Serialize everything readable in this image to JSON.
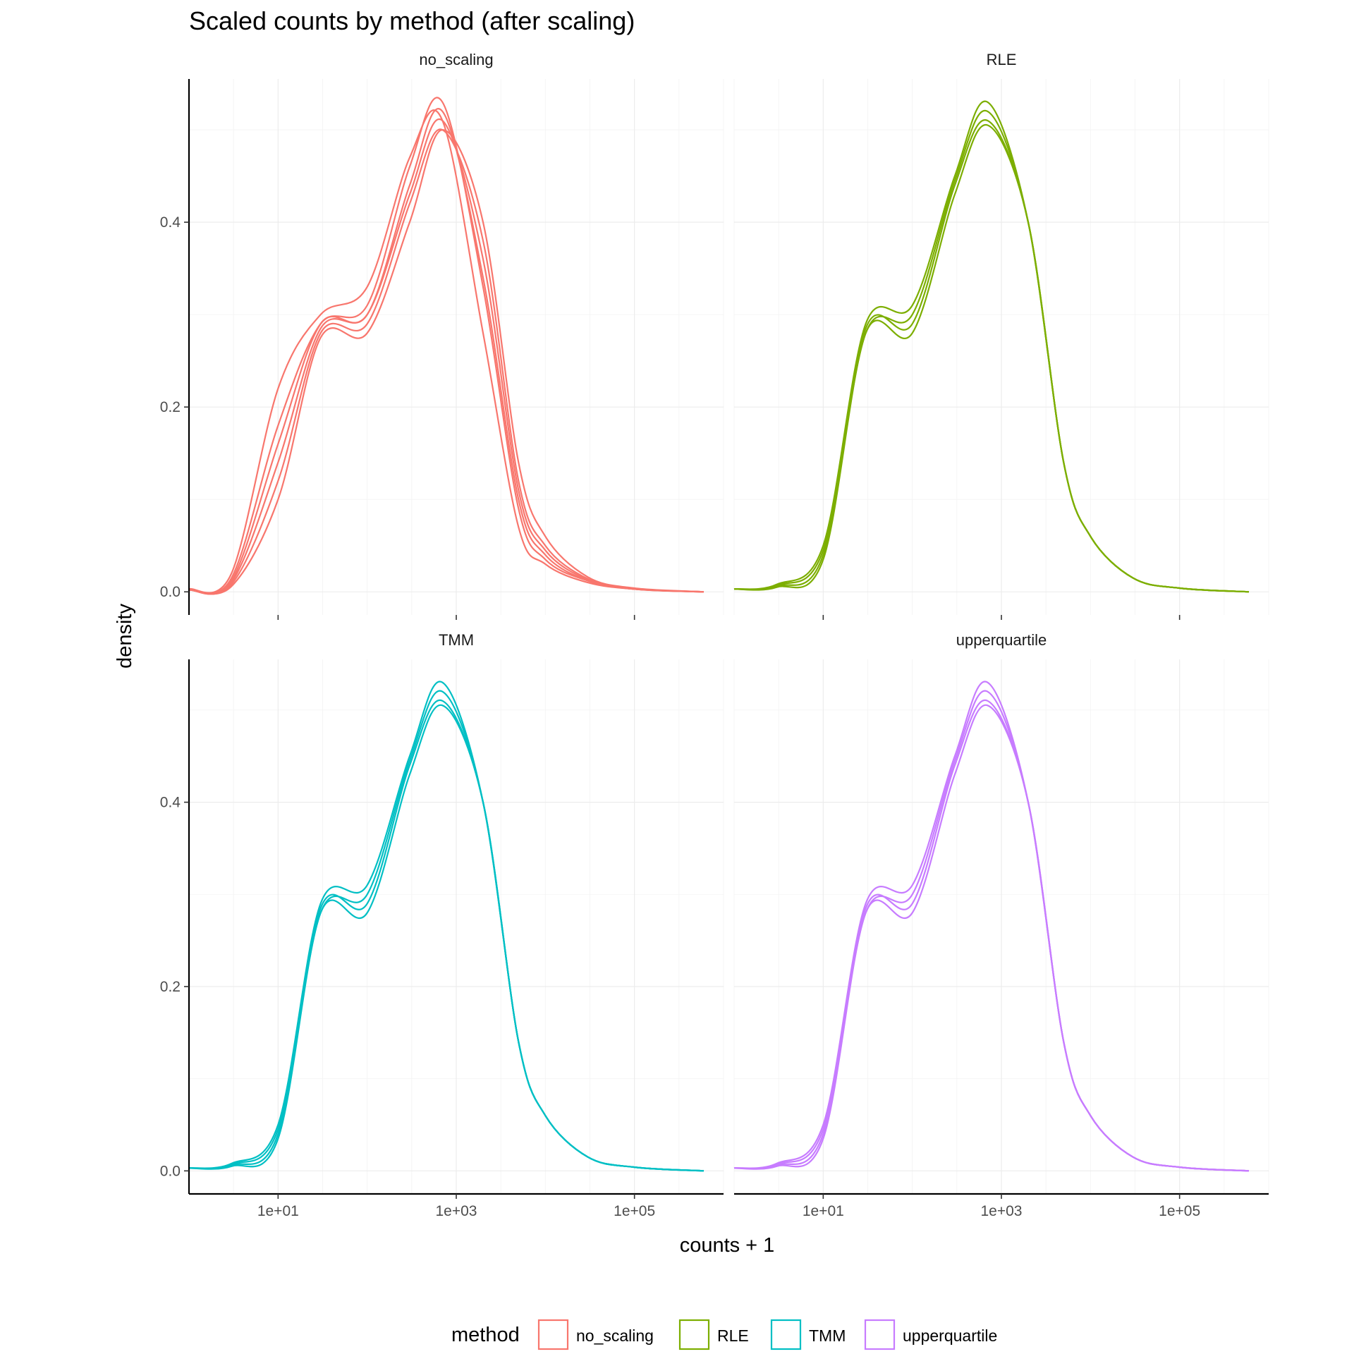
{
  "title": "Scaled counts by method (after scaling)",
  "xlabel": "counts + 1",
  "ylabel": "density",
  "legend": {
    "title": "method",
    "items": [
      {
        "label": "no_scaling",
        "color": "#F8766D"
      },
      {
        "label": "RLE",
        "color": "#7CAE00"
      },
      {
        "label": "TMM",
        "color": "#00BFC4"
      },
      {
        "label": "upperquartile",
        "color": "#C77CFF"
      }
    ]
  },
  "chart_data": {
    "type": "line",
    "subtype": "density",
    "title": "Scaled counts by method (after scaling)",
    "xlabel": "counts + 1",
    "ylabel": "density",
    "x_scale": "log10",
    "xlim": [
      1,
      1000000
    ],
    "ylim": [
      -0.025,
      0.555
    ],
    "x_ticks": [
      "1e+01",
      "1e+03",
      "1e+05"
    ],
    "y_ticks": [
      "0.0",
      "0.2",
      "0.4"
    ],
    "grid": true,
    "legend_position": "bottom",
    "facets": [
      {
        "name": "no_scaling",
        "color": "#F8766D",
        "series": [
          {
            "x": [
              1,
              3,
              10,
              30,
              100,
              300,
              700,
              2000,
              5000,
              10000,
              30000,
              100000,
              600000
            ],
            "y": [
              0.003,
              0.02,
              0.22,
              0.3,
              0.33,
              0.47,
              0.51,
              0.28,
              0.07,
              0.03,
              0.01,
              0.003,
              0.0
            ]
          },
          {
            "x": [
              1,
              3,
              10,
              30,
              100,
              300,
              700,
              2000,
              5000,
              10000,
              30000,
              100000,
              600000
            ],
            "y": [
              0.002,
              0.015,
              0.18,
              0.29,
              0.31,
              0.46,
              0.53,
              0.33,
              0.09,
              0.035,
              0.012,
              0.003,
              0.0
            ]
          },
          {
            "x": [
              1,
              3,
              10,
              30,
              100,
              300,
              700,
              2000,
              5000,
              10000,
              30000,
              100000,
              600000
            ],
            "y": [
              0.002,
              0.012,
              0.16,
              0.29,
              0.3,
              0.44,
              0.52,
              0.34,
              0.1,
              0.04,
              0.012,
              0.003,
              0.0
            ]
          },
          {
            "x": [
              1,
              3,
              10,
              30,
              100,
              300,
              700,
              2000,
              5000,
              10000,
              30000,
              100000,
              600000
            ],
            "y": [
              0.002,
              0.01,
              0.14,
              0.285,
              0.3,
              0.43,
              0.51,
              0.36,
              0.11,
              0.045,
              0.013,
              0.003,
              0.0
            ]
          },
          {
            "x": [
              1,
              3,
              10,
              30,
              100,
              300,
              700,
              2000,
              5000,
              10000,
              30000,
              100000,
              600000
            ],
            "y": [
              0.002,
              0.008,
              0.12,
              0.28,
              0.29,
              0.42,
              0.5,
              0.38,
              0.12,
              0.05,
              0.014,
              0.003,
              0.0
            ]
          },
          {
            "x": [
              1,
              3,
              10,
              30,
              100,
              300,
              700,
              2000,
              5000,
              10000,
              30000,
              100000,
              600000
            ],
            "y": [
              0.002,
              0.006,
              0.1,
              0.275,
              0.28,
              0.4,
              0.5,
              0.4,
              0.14,
              0.06,
              0.016,
              0.004,
              0.0
            ]
          }
        ]
      },
      {
        "name": "RLE",
        "color": "#7CAE00",
        "series": [
          {
            "x": [
              1,
              3,
              10,
              30,
              100,
              300,
              700,
              2000,
              5000,
              10000,
              30000,
              100000,
              600000
            ],
            "y": [
              0.003,
              0.008,
              0.05,
              0.29,
              0.31,
              0.45,
              0.53,
              0.4,
              0.14,
              0.06,
              0.015,
              0.004,
              0.0
            ]
          },
          {
            "x": [
              1,
              3,
              10,
              30,
              100,
              300,
              700,
              2000,
              5000,
              10000,
              30000,
              100000,
              600000
            ],
            "y": [
              0.003,
              0.007,
              0.045,
              0.28,
              0.3,
              0.445,
              0.52,
              0.4,
              0.14,
              0.06,
              0.015,
              0.004,
              0.0
            ]
          },
          {
            "x": [
              1,
              3,
              10,
              30,
              100,
              300,
              700,
              2000,
              5000,
              10000,
              30000,
              100000,
              600000
            ],
            "y": [
              0.003,
              0.006,
              0.04,
              0.285,
              0.29,
              0.44,
              0.51,
              0.4,
              0.14,
              0.06,
              0.015,
              0.004,
              0.0
            ]
          },
          {
            "x": [
              1,
              3,
              10,
              30,
              100,
              300,
              700,
              2000,
              5000,
              10000,
              30000,
              100000,
              600000
            ],
            "y": [
              0.003,
              0.005,
              0.035,
              0.28,
              0.28,
              0.43,
              0.505,
              0.4,
              0.14,
              0.06,
              0.015,
              0.004,
              0.0
            ]
          }
        ]
      },
      {
        "name": "TMM",
        "color": "#00BFC4",
        "series": [
          {
            "x": [
              1,
              3,
              10,
              30,
              100,
              300,
              700,
              2000,
              5000,
              10000,
              30000,
              100000,
              600000
            ],
            "y": [
              0.003,
              0.008,
              0.05,
              0.29,
              0.31,
              0.45,
              0.53,
              0.4,
              0.14,
              0.06,
              0.015,
              0.004,
              0.0
            ]
          },
          {
            "x": [
              1,
              3,
              10,
              30,
              100,
              300,
              700,
              2000,
              5000,
              10000,
              30000,
              100000,
              600000
            ],
            "y": [
              0.003,
              0.007,
              0.045,
              0.28,
              0.3,
              0.445,
              0.52,
              0.4,
              0.14,
              0.06,
              0.015,
              0.004,
              0.0
            ]
          },
          {
            "x": [
              1,
              3,
              10,
              30,
              100,
              300,
              700,
              2000,
              5000,
              10000,
              30000,
              100000,
              600000
            ],
            "y": [
              0.003,
              0.006,
              0.04,
              0.285,
              0.29,
              0.44,
              0.51,
              0.4,
              0.14,
              0.06,
              0.015,
              0.004,
              0.0
            ]
          },
          {
            "x": [
              1,
              3,
              10,
              30,
              100,
              300,
              700,
              2000,
              5000,
              10000,
              30000,
              100000,
              600000
            ],
            "y": [
              0.003,
              0.005,
              0.035,
              0.28,
              0.28,
              0.43,
              0.505,
              0.4,
              0.14,
              0.06,
              0.015,
              0.004,
              0.0
            ]
          }
        ]
      },
      {
        "name": "upperquartile",
        "color": "#C77CFF",
        "series": [
          {
            "x": [
              1,
              3,
              10,
              30,
              100,
              300,
              700,
              2000,
              5000,
              10000,
              30000,
              100000,
              600000
            ],
            "y": [
              0.003,
              0.008,
              0.05,
              0.29,
              0.31,
              0.45,
              0.53,
              0.4,
              0.14,
              0.06,
              0.015,
              0.004,
              0.0
            ]
          },
          {
            "x": [
              1,
              3,
              10,
              30,
              100,
              300,
              700,
              2000,
              5000,
              10000,
              30000,
              100000,
              600000
            ],
            "y": [
              0.003,
              0.007,
              0.045,
              0.28,
              0.3,
              0.445,
              0.52,
              0.4,
              0.14,
              0.06,
              0.015,
              0.004,
              0.0
            ]
          },
          {
            "x": [
              1,
              3,
              10,
              30,
              100,
              300,
              700,
              2000,
              5000,
              10000,
              30000,
              100000,
              600000
            ],
            "y": [
              0.003,
              0.006,
              0.04,
              0.285,
              0.29,
              0.44,
              0.51,
              0.4,
              0.14,
              0.06,
              0.015,
              0.004,
              0.0
            ]
          },
          {
            "x": [
              1,
              3,
              10,
              30,
              100,
              300,
              700,
              2000,
              5000,
              10000,
              30000,
              100000,
              600000
            ],
            "y": [
              0.003,
              0.005,
              0.035,
              0.28,
              0.28,
              0.43,
              0.505,
              0.4,
              0.14,
              0.06,
              0.015,
              0.004,
              0.0
            ]
          }
        ]
      }
    ]
  }
}
